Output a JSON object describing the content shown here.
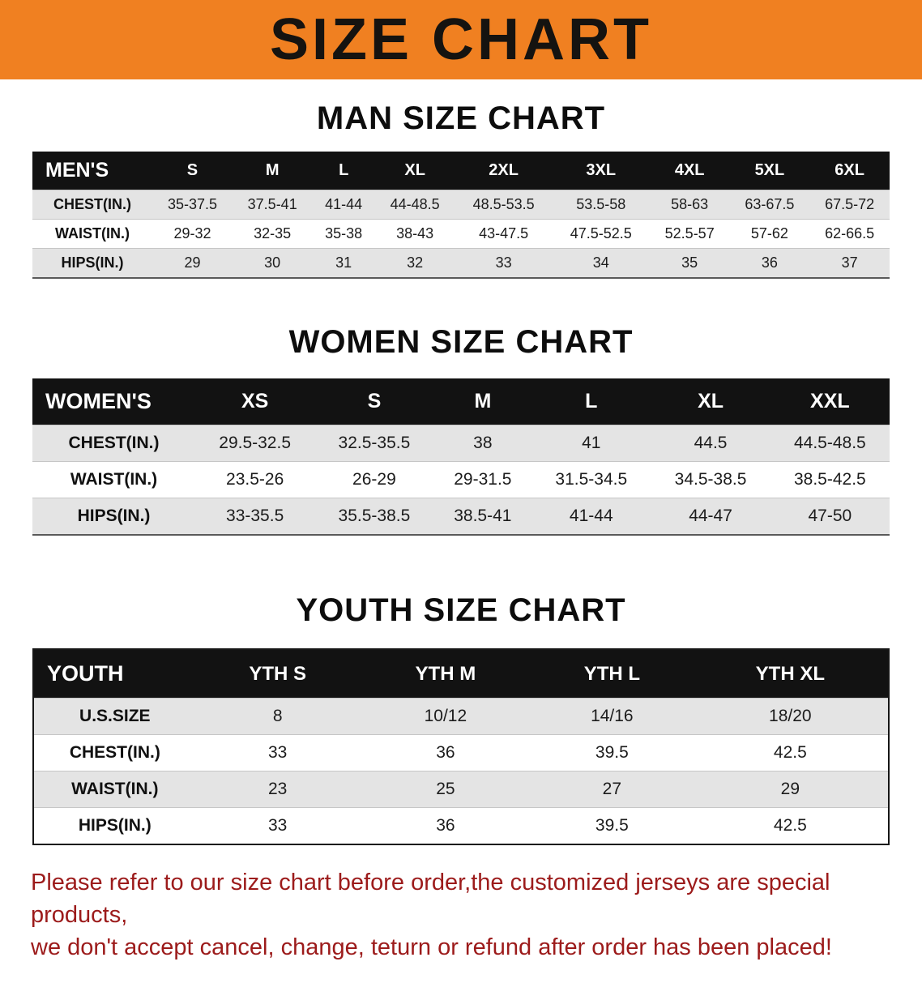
{
  "banner": {
    "title": "SIZE CHART"
  },
  "colors": {
    "banner_bg": "#f08021",
    "table_header_bg": "#121212",
    "row_alt": "#e4e4e4",
    "disclaimer_text": "#9c1b1b"
  },
  "sections": {
    "men": {
      "heading": "MAN SIZE CHART",
      "table": {
        "header": [
          "MEN'S",
          "S",
          "M",
          "L",
          "XL",
          "2XL",
          "3XL",
          "4XL",
          "5XL",
          "6XL"
        ],
        "rows": [
          [
            "CHEST(IN.)",
            "35-37.5",
            "37.5-41",
            "41-44",
            "44-48.5",
            "48.5-53.5",
            "53.5-58",
            "58-63",
            "63-67.5",
            "67.5-72"
          ],
          [
            "WAIST(IN.)",
            "29-32",
            "32-35",
            "35-38",
            "38-43",
            "43-47.5",
            "47.5-52.5",
            "52.5-57",
            "57-62",
            "62-66.5"
          ],
          [
            "HIPS(IN.)",
            "29",
            "30",
            "31",
            "32",
            "33",
            "34",
            "35",
            "36",
            "37"
          ]
        ]
      }
    },
    "women": {
      "heading": "WOMEN SIZE CHART",
      "table": {
        "header": [
          "WOMEN'S",
          "XS",
          "S",
          "M",
          "L",
          "XL",
          "XXL"
        ],
        "rows": [
          [
            "CHEST(IN.)",
            "29.5-32.5",
            "32.5-35.5",
            "38",
            "41",
            "44.5",
            "44.5-48.5"
          ],
          [
            "WAIST(IN.)",
            "23.5-26",
            "26-29",
            "29-31.5",
            "31.5-34.5",
            "34.5-38.5",
            "38.5-42.5"
          ],
          [
            "HIPS(IN.)",
            "33-35.5",
            "35.5-38.5",
            "38.5-41",
            "41-44",
            "44-47",
            "47-50"
          ]
        ]
      }
    },
    "youth": {
      "heading": "YOUTH SIZE CHART",
      "table": {
        "header": [
          "YOUTH",
          "YTH S",
          "YTH M",
          "YTH L",
          "YTH XL"
        ],
        "rows": [
          [
            "U.S.SIZE",
            "8",
            "10/12",
            "14/16",
            "18/20"
          ],
          [
            "CHEST(IN.)",
            "33",
            "36",
            "39.5",
            "42.5"
          ],
          [
            "WAIST(IN.)",
            "23",
            "25",
            "27",
            "29"
          ],
          [
            "HIPS(IN.)",
            "33",
            "36",
            "39.5",
            "42.5"
          ]
        ]
      }
    }
  },
  "disclaimer": {
    "line1": "Please refer to our size chart before order,the customized jerseys are special products,",
    "line2": "we don't accept cancel, change, teturn or refund after order has been placed!"
  }
}
